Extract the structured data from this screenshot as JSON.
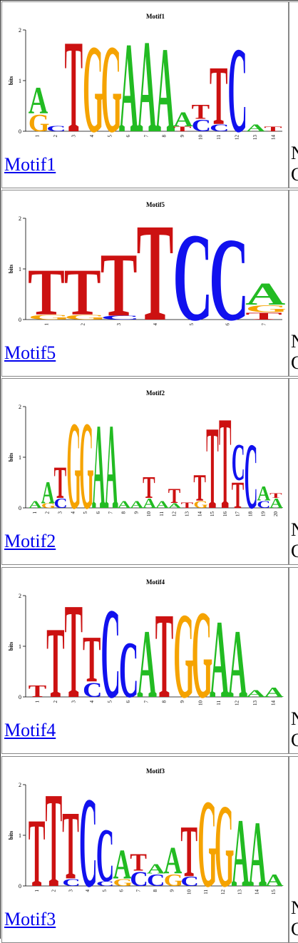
{
  "rows": [
    {
      "title": "Motif1",
      "link": "Motif1",
      "clip1": "N",
      "clip2": "C",
      "ylabel": "bits",
      "yticks": [
        "0",
        "1",
        "2"
      ],
      "positions": [
        "1",
        "2",
        "3",
        "4",
        "5",
        "6",
        "7",
        "8",
        "9",
        "10",
        "11",
        "12",
        "13",
        "14"
      ],
      "stacks": [
        [
          [
            "G",
            0.35
          ],
          [
            "A",
            0.55
          ]
        ],
        [
          [
            "C",
            0.12
          ]
        ],
        [
          [
            "T",
            1.9
          ]
        ],
        [
          [
            "G",
            1.8
          ]
        ],
        [
          [
            "G",
            1.8
          ]
        ],
        [
          [
            "A",
            1.85
          ]
        ],
        [
          [
            "A",
            1.9
          ]
        ],
        [
          [
            "A",
            1.75
          ]
        ],
        [
          [
            "T",
            0.1
          ],
          [
            "A",
            0.3
          ]
        ],
        [
          [
            "C",
            0.25
          ],
          [
            "T",
            0.3
          ]
        ],
        [
          [
            "C",
            0.15
          ],
          [
            "T",
            1.2
          ]
        ],
        [
          [
            "C",
            1.75
          ]
        ],
        [
          [
            "A",
            0.15
          ]
        ],
        [
          [
            "T",
            0.1
          ]
        ]
      ]
    },
    {
      "title": "Motif5",
      "link": "Motif5",
      "clip1": "N",
      "clip2": "C",
      "ylabel": "bits",
      "yticks": [
        "0",
        "1",
        "2"
      ],
      "positions": [
        "1",
        "2",
        "3",
        "4",
        "5",
        "6",
        "7"
      ],
      "stacks": [
        [
          [
            "G",
            0.1
          ],
          [
            "T",
            0.95
          ]
        ],
        [
          [
            "G",
            0.1
          ],
          [
            "T",
            0.95
          ]
        ],
        [
          [
            "C",
            0.08
          ],
          [
            "T",
            1.3
          ]
        ],
        [
          [
            "T",
            2.0
          ]
        ],
        [
          [
            "C",
            1.8
          ]
        ],
        [
          [
            "C",
            1.7
          ]
        ],
        [
          [
            "T",
            0.15
          ],
          [
            "G",
            0.15
          ],
          [
            "A",
            0.45
          ]
        ]
      ]
    },
    {
      "title": "Motif2",
      "link": "Motif2",
      "clip1": "N",
      "clip2": "C",
      "ylabel": "bits",
      "yticks": [
        "0",
        "1",
        "2"
      ],
      "positions": [
        "1",
        "2",
        "3",
        "4",
        "5",
        "6",
        "7",
        "8",
        "9",
        "10",
        "11",
        "12",
        "13",
        "14",
        "15",
        "16",
        "17",
        "18",
        "19",
        "20"
      ],
      "stacks": [
        [
          [
            "A",
            0.15
          ]
        ],
        [
          [
            "G",
            0.1
          ],
          [
            "A",
            0.45
          ]
        ],
        [
          [
            "C",
            0.2
          ],
          [
            "T",
            0.65
          ]
        ],
        [
          [
            "G",
            1.8
          ]
        ],
        [
          [
            "G",
            1.8
          ]
        ],
        [
          [
            "A",
            1.75
          ]
        ],
        [
          [
            "A",
            1.75
          ]
        ],
        [
          [
            "A",
            0.15
          ]
        ],
        [
          [
            "A",
            0.15
          ]
        ],
        [
          [
            "A",
            0.2
          ],
          [
            "T",
            0.45
          ]
        ],
        [
          [
            "A",
            0.15
          ]
        ],
        [
          [
            "A",
            0.1
          ],
          [
            "T",
            0.3
          ]
        ],
        [
          [
            "T",
            0.12
          ]
        ],
        [
          [
            "G",
            0.15
          ],
          [
            "T",
            0.55
          ]
        ],
        [
          [
            "T",
            1.7
          ]
        ],
        [
          [
            "T",
            1.9
          ]
        ],
        [
          [
            "T",
            0.55
          ],
          [
            "C",
            0.75
          ]
        ],
        [
          [
            "C",
            1.35
          ]
        ],
        [
          [
            "C",
            0.15
          ],
          [
            "A",
            0.3
          ]
        ],
        [
          [
            "A",
            0.2
          ],
          [
            "T",
            0.1
          ]
        ]
      ]
    },
    {
      "title": "Motif4",
      "link": "Motif4",
      "clip1": "N",
      "clip2": "C",
      "ylabel": "bits",
      "yticks": [
        "0",
        "1",
        "2"
      ],
      "positions": [
        "1",
        "2",
        "3",
        "4",
        "5",
        "6",
        "7",
        "8",
        "9",
        "10",
        "11",
        "12",
        "13",
        "14"
      ],
      "stacks": [
        [
          [
            "T",
            0.25
          ]
        ],
        [
          [
            "T",
            1.45
          ]
        ],
        [
          [
            "T",
            1.95
          ]
        ],
        [
          [
            "C",
            0.3
          ],
          [
            "T",
            0.95
          ]
        ],
        [
          [
            "C",
            1.85
          ]
        ],
        [
          [
            "C",
            1.15
          ]
        ],
        [
          [
            "A",
            1.4
          ]
        ],
        [
          [
            "T",
            1.75
          ]
        ],
        [
          [
            "G",
            1.75
          ]
        ],
        [
          [
            "G",
            1.8
          ]
        ],
        [
          [
            "A",
            1.6
          ]
        ],
        [
          [
            "A",
            1.4
          ]
        ],
        [
          [
            "A",
            0.15
          ]
        ],
        [
          [
            "A",
            0.2
          ]
        ]
      ]
    },
    {
      "title": "Motif3",
      "link": "Motif3",
      "clip1": "N",
      "clip2": "C",
      "ylabel": "bits",
      "yticks": [
        "0",
        "1",
        "2"
      ],
      "positions": [
        "1",
        "2",
        "3",
        "4",
        "5",
        "6",
        "7",
        "8",
        "9",
        "10",
        "11",
        "12",
        "13",
        "14",
        "15"
      ],
      "stacks": [
        [
          [
            "T",
            1.4
          ]
        ],
        [
          [
            "T",
            1.95
          ]
        ],
        [
          [
            "C",
            0.15
          ],
          [
            "T",
            1.4
          ]
        ],
        [
          [
            "C",
            1.85
          ]
        ],
        [
          [
            "C",
            0.1
          ],
          [
            "C",
            1.1
          ]
        ],
        [
          [
            "G",
            0.15
          ],
          [
            "A",
            0.6
          ]
        ],
        [
          [
            "C",
            0.3
          ],
          [
            "T",
            0.35
          ]
        ],
        [
          [
            "C",
            0.25
          ],
          [
            "A",
            0.2
          ]
        ],
        [
          [
            "G",
            0.25
          ],
          [
            "A",
            0.55
          ]
        ],
        [
          [
            "C",
            0.2
          ],
          [
            "T",
            1.05
          ]
        ],
        [
          [
            "G",
            1.8
          ]
        ],
        [
          [
            "G",
            1.7
          ]
        ],
        [
          [
            "A",
            1.4
          ]
        ],
        [
          [
            "A",
            1.35
          ]
        ],
        [
          [
            "A",
            0.25
          ]
        ]
      ]
    }
  ],
  "colors": {
    "A": "#22bb22",
    "C": "#1111ee",
    "G": "#f5a300",
    "T": "#cc1111",
    "link": "#0000ee"
  }
}
